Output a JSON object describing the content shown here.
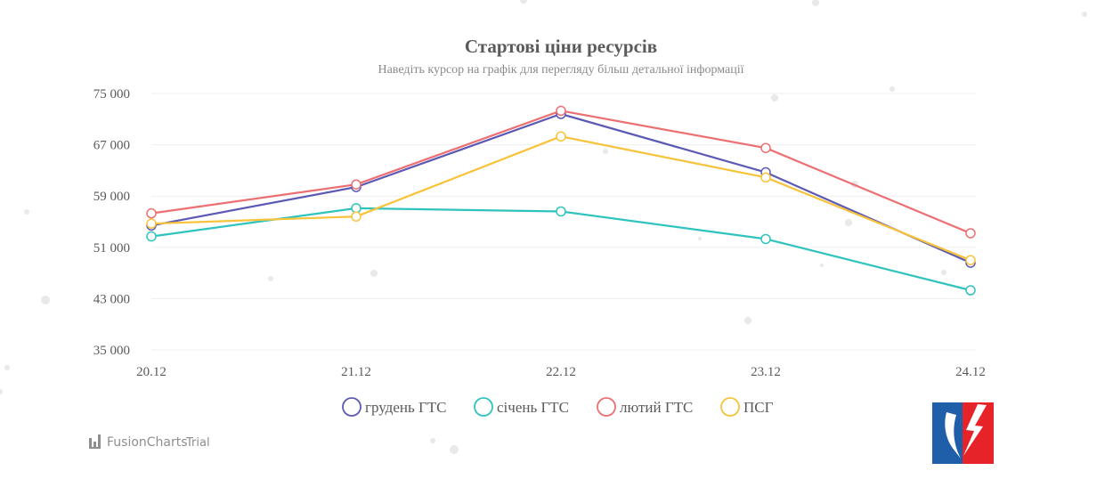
{
  "chart_data": {
    "type": "line",
    "title": "Стартові ціни ресурсів",
    "subtitle": "Наведіть курсор на графік для перегляду більш детальної інформації",
    "x": [
      "20.12",
      "21.12",
      "22.12",
      "23.12",
      "24.12"
    ],
    "ylim": [
      35000,
      75000
    ],
    "yticks": [
      {
        "value": 75000,
        "label": "75 000"
      },
      {
        "value": 67000,
        "label": "67 000"
      },
      {
        "value": 59000,
        "label": "59 000"
      },
      {
        "value": 51000,
        "label": "51 000"
      },
      {
        "value": 43000,
        "label": "43 000"
      },
      {
        "value": 35000,
        "label": "35 000"
      }
    ],
    "grid": true,
    "legend_position": "bottom-center",
    "series": [
      {
        "name": "грудень ГТС",
        "color": "#5c59b4",
        "values": [
          54400,
          60400,
          71800,
          62700,
          48600
        ]
      },
      {
        "name": "січень ГТС",
        "color": "#2fc3bd",
        "values": [
          52700,
          57100,
          56600,
          52300,
          44300
        ]
      },
      {
        "name": "лютий ГТС",
        "color": "#ec6f72",
        "values": [
          56300,
          60800,
          72300,
          66500,
          53200
        ]
      },
      {
        "name": "ПСГ",
        "color": "#f8c33a",
        "values": [
          54700,
          55800,
          68300,
          61900,
          49000
        ]
      }
    ]
  },
  "branding": {
    "name": "FusionCharts",
    "suffix": "Trial",
    "icon": "bar-chart-icon",
    "colors": {
      "muted": "#8e8e8e"
    }
  },
  "logo": {
    "icon": "company-logo-icon",
    "colors": {
      "blue": "#1f5ea8",
      "red": "#e52329"
    }
  }
}
